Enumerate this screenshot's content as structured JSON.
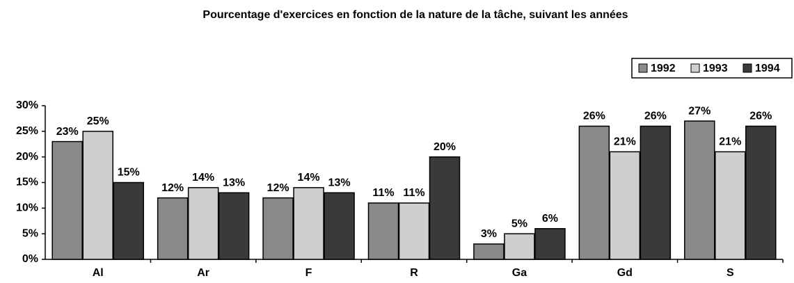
{
  "chart_data": {
    "type": "bar",
    "title": "Pourcentage d'exercices en fonction de la nature de la tâche, suivant les années",
    "categories": [
      "Al",
      "Ar",
      "F",
      "R",
      "Ga",
      "Gd",
      "S"
    ],
    "series": [
      {
        "name": "1992",
        "color": "#8a8a8a",
        "values": [
          23,
          12,
          12,
          11,
          3,
          26,
          27
        ],
        "value_labels": [
          "23%",
          "12%",
          "12%",
          "11%",
          "3%",
          "26%",
          "27%"
        ]
      },
      {
        "name": "1993",
        "color": "#cfcfcf",
        "values": [
          25,
          14,
          14,
          11,
          5,
          21,
          21
        ],
        "value_labels": [
          "25%",
          "14%",
          "14%",
          "11%",
          "5%",
          "21%",
          "21%"
        ]
      },
      {
        "name": "1994",
        "color": "#3a3a3a",
        "values": [
          15,
          13,
          13,
          20,
          6,
          26,
          26
        ],
        "value_labels": [
          "15%",
          "13%",
          "13%",
          "20%",
          "6%",
          "26%",
          "26%"
        ]
      }
    ],
    "ylim": [
      0,
      30
    ],
    "yticks": [
      {
        "value": 0,
        "label": "0%"
      },
      {
        "value": 5,
        "label": "5%"
      },
      {
        "value": 10,
        "label": "10%"
      },
      {
        "value": 15,
        "label": "15%"
      },
      {
        "value": 20,
        "label": "20%"
      },
      {
        "value": 25,
        "label": "25%"
      },
      {
        "value": 30,
        "label": "30%"
      }
    ],
    "legend": "upper right"
  }
}
